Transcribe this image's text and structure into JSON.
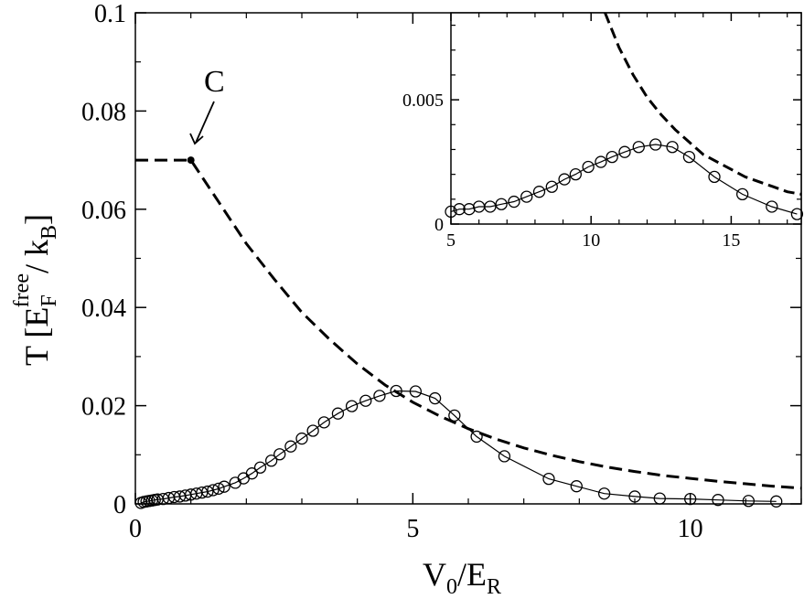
{
  "chart_data": [
    {
      "panel": "main",
      "type": "line",
      "xlabel": {
        "main": "V",
        "sub1": "0",
        "mid": "/E",
        "sub2": "R"
      },
      "ylabel": {
        "pre": "T [E",
        "sup": "free",
        "sub": "F",
        "mid": "/ k",
        "sub2": "B",
        "post": "]"
      },
      "xlim": [
        0,
        12
      ],
      "ylim": [
        0,
        0.1
      ],
      "xticks": [
        0,
        5,
        10
      ],
      "xtick_labels": [
        "0",
        "5",
        "10"
      ],
      "yticks": [
        0,
        0.02,
        0.04,
        0.06,
        0.08,
        0.1
      ],
      "ytick_labels": [
        "0",
        "0.02",
        "0.04",
        "0.06",
        "0.08",
        "0.1"
      ],
      "grid": false,
      "series": [
        {
          "style": "dashed",
          "x": [
            0,
            0.5,
            1.0,
            1.5,
            2.0,
            2.5,
            3.0,
            3.5,
            4.0,
            4.5,
            5.0,
            5.5,
            6.0,
            6.5,
            7.0,
            7.5,
            8.0,
            8.5,
            9.0,
            9.5,
            10.0,
            10.5,
            11.0,
            11.5,
            12.0
          ],
          "y": [
            0.07,
            0.07,
            0.07,
            0.0615,
            0.053,
            0.0458,
            0.039,
            0.0335,
            0.0285,
            0.0242,
            0.0207,
            0.0178,
            0.0153,
            0.0132,
            0.0114,
            0.0099,
            0.0086,
            0.0075,
            0.0066,
            0.0058,
            0.0052,
            0.0046,
            0.0041,
            0.0036,
            0.0032
          ]
        },
        {
          "style": "solid-circles",
          "x": [
            0.1,
            0.15,
            0.2,
            0.25,
            0.3,
            0.35,
            0.4,
            0.5,
            0.6,
            0.7,
            0.8,
            0.9,
            1.0,
            1.1,
            1.2,
            1.3,
            1.4,
            1.5,
            1.6,
            1.8,
            1.95,
            2.1,
            2.25,
            2.45,
            2.6,
            2.8,
            3.0,
            3.2,
            3.4,
            3.65,
            3.9,
            4.15,
            4.4,
            4.7,
            5.05,
            5.4,
            5.75,
            6.15,
            6.65,
            7.45,
            7.95,
            8.45,
            9.0,
            9.45,
            10.0,
            10.5,
            11.05,
            11.55
          ],
          "y": [
            0.0002,
            0.0004,
            0.0005,
            0.0006,
            0.0007,
            0.0008,
            0.0009,
            0.001,
            0.0012,
            0.0014,
            0.0015,
            0.0017,
            0.0019,
            0.0021,
            0.0023,
            0.0025,
            0.0028,
            0.0031,
            0.0035,
            0.0043,
            0.0052,
            0.0062,
            0.0074,
            0.0088,
            0.0101,
            0.0117,
            0.0133,
            0.0149,
            0.0166,
            0.0184,
            0.0199,
            0.021,
            0.022,
            0.023,
            0.0229,
            0.0215,
            0.018,
            0.0137,
            0.0097,
            0.0051,
            0.0036,
            0.0021,
            0.0015,
            0.0011,
            0.001,
            0.0008,
            0.0006,
            0.0005
          ]
        }
      ],
      "annotations": [
        {
          "text": "C",
          "x": 1.0,
          "y": 0.07
        }
      ]
    },
    {
      "panel": "inset",
      "type": "line",
      "xlim": [
        5,
        17.5
      ],
      "ylim": [
        0,
        0.0085
      ],
      "xticks": [
        5,
        10,
        15
      ],
      "xtick_labels": [
        "5",
        "10",
        "15"
      ],
      "yticks": [
        0,
        0.005
      ],
      "ytick_labels": [
        "0",
        "0.005"
      ],
      "grid": false,
      "series": [
        {
          "style": "dashed",
          "x": [
            10.5,
            11,
            11.5,
            12,
            12.5,
            13,
            13.5,
            14,
            14.5,
            15,
            15.5,
            16,
            16.5,
            17,
            17.5
          ],
          "y": [
            0.0085,
            0.0071,
            0.006,
            0.0051,
            0.0044,
            0.0038,
            0.0033,
            0.0028,
            0.0025,
            0.0022,
            0.0019,
            0.0017,
            0.0015,
            0.0013,
            0.0012
          ]
        },
        {
          "style": "solid-circles",
          "x": [
            5.0,
            5.3,
            5.65,
            6.0,
            6.4,
            6.8,
            7.25,
            7.7,
            8.15,
            8.6,
            9.05,
            9.45,
            9.9,
            10.35,
            10.75,
            11.2,
            11.7,
            12.3,
            12.9,
            13.5,
            14.4,
            15.4,
            16.45,
            17.35
          ],
          "y": [
            0.0005,
            0.0006,
            0.0006,
            0.0007,
            0.0007,
            0.0008,
            0.0009,
            0.0011,
            0.0013,
            0.0015,
            0.0018,
            0.002,
            0.0023,
            0.0025,
            0.0027,
            0.0029,
            0.0031,
            0.0032,
            0.0031,
            0.0027,
            0.0019,
            0.0012,
            0.0007,
            0.0004
          ]
        }
      ]
    }
  ]
}
